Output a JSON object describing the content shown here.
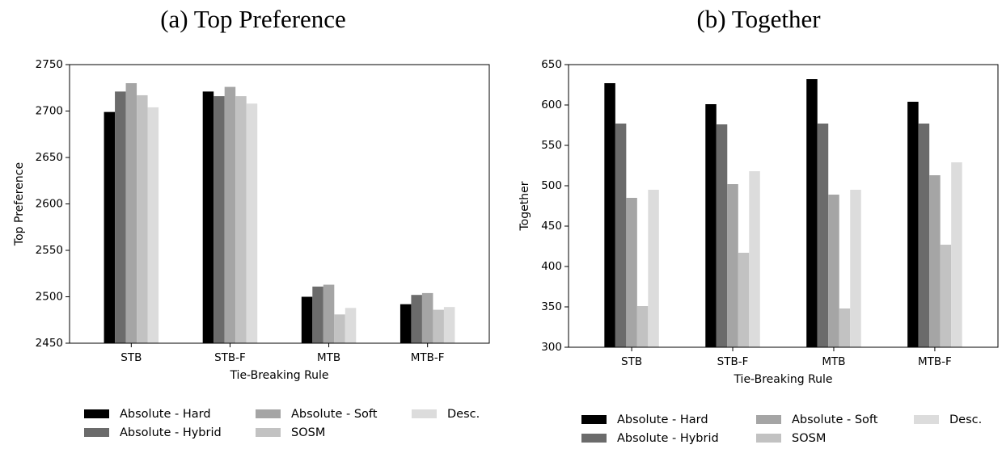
{
  "chart_data": [
    {
      "type": "bar",
      "title": "(a) Top Preference",
      "xlabel": "Tie-Breaking Rule",
      "ylabel": "Top Preference",
      "categories": [
        "STB",
        "STB-F",
        "MTB",
        "MTB-F"
      ],
      "ylim": [
        2450,
        2750
      ],
      "yticks": [
        2450,
        2500,
        2550,
        2600,
        2650,
        2700,
        2750
      ],
      "grid": false,
      "legend_position": "bottom",
      "series": [
        {
          "name": "Absolute - Hard",
          "color": "#000000",
          "values": [
            2699,
            2721,
            2500,
            2492
          ]
        },
        {
          "name": "Absolute - Hybrid",
          "color": "#6b6b6b",
          "values": [
            2721,
            2716,
            2511,
            2502
          ]
        },
        {
          "name": "Absolute - Soft",
          "color": "#a5a5a5",
          "values": [
            2730,
            2726,
            2513,
            2504
          ]
        },
        {
          "name": "SOSM",
          "color": "#c2c2c2",
          "values": [
            2717,
            2716,
            2481,
            2486
          ]
        },
        {
          "name": "Desc.",
          "color": "#dcdcdc",
          "values": [
            2704,
            2708,
            2488,
            2489
          ]
        }
      ]
    },
    {
      "type": "bar",
      "title": "(b) Together",
      "xlabel": "Tie-Breaking Rule",
      "ylabel": "Together",
      "categories": [
        "STB",
        "STB-F",
        "MTB",
        "MTB-F"
      ],
      "ylim": [
        300,
        650
      ],
      "yticks": [
        300,
        350,
        400,
        450,
        500,
        550,
        600,
        650
      ],
      "grid": false,
      "legend_position": "bottom",
      "series": [
        {
          "name": "Absolute - Hard",
          "color": "#000000",
          "values": [
            627,
            601,
            632,
            604
          ]
        },
        {
          "name": "Absolute - Hybrid",
          "color": "#6b6b6b",
          "values": [
            577,
            576,
            577,
            577
          ]
        },
        {
          "name": "Absolute - Soft",
          "color": "#a5a5a5",
          "values": [
            485,
            502,
            489,
            513
          ]
        },
        {
          "name": "SOSM",
          "color": "#c2c2c2",
          "values": [
            351,
            417,
            348,
            427
          ]
        },
        {
          "name": "Desc.",
          "color": "#dcdcdc",
          "values": [
            495,
            518,
            495,
            529
          ]
        }
      ]
    }
  ]
}
